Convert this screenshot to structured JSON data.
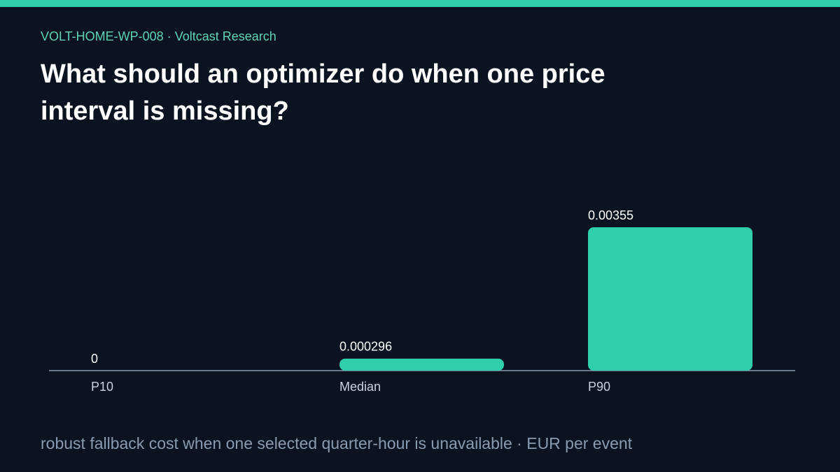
{
  "eyebrow": "VOLT-HOME-WP-008 · Voltcast Research",
  "chart_data": {
    "type": "bar",
    "title": "What should an optimizer do when one price interval is missing?",
    "caption": "robust fallback cost when one selected quarter-hour is unavailable · EUR per event",
    "categories": [
      "P10",
      "Median",
      "P90"
    ],
    "values": [
      0,
      0.000296,
      0.00355
    ],
    "color": "#2ecfaa"
  }
}
